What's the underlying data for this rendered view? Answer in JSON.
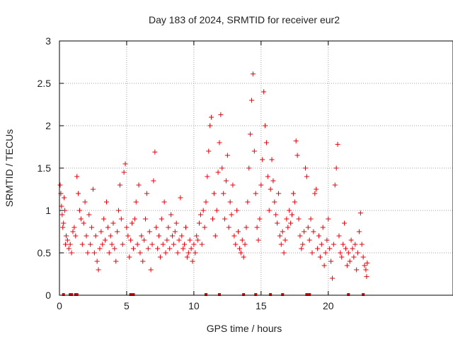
{
  "chart_data": {
    "type": "scatter",
    "title": "Day 183 of 2024, SRMTID for receiver eur2",
    "xlabel": "GPS time / hours",
    "ylabel": "SRMTID / TECUs",
    "xlim": [
      0,
      29.28
    ],
    "ylim": [
      0,
      3
    ],
    "x_ticks": [
      0,
      5,
      10,
      15,
      20
    ],
    "y_ticks": [
      0,
      0.5,
      1,
      1.5,
      2,
      2.5,
      3
    ],
    "y_tick_labels": [
      "0",
      "0.5",
      "1",
      "1.5",
      "2",
      "2.5",
      "3"
    ],
    "grid": true,
    "marker": "+",
    "color": "#e8000b",
    "series": [
      {
        "name": "eur2",
        "points": [
          [
            0.05,
            1.3
          ],
          [
            0.1,
            1.2
          ],
          [
            0.15,
            1.05
          ],
          [
            0.2,
            0.95
          ],
          [
            0.25,
            0.8
          ],
          [
            0.3,
            0.85
          ],
          [
            0.35,
            1.15
          ],
          [
            0.4,
            1.0
          ],
          [
            0.45,
            0.6
          ],
          [
            0.5,
            0.7
          ],
          [
            0.6,
            0.65
          ],
          [
            0.7,
            0.55
          ],
          [
            0.8,
            0.6
          ],
          [
            0.9,
            0.5
          ],
          [
            1.0,
            0.75
          ],
          [
            1.1,
            0.8
          ],
          [
            1.2,
            0.7
          ],
          [
            1.3,
            1.4
          ],
          [
            1.4,
            1.2
          ],
          [
            1.5,
            1.0
          ],
          [
            1.6,
            0.9
          ],
          [
            1.7,
            0.6
          ],
          [
            1.8,
            0.85
          ],
          [
            1.9,
            1.1
          ],
          [
            2.0,
            0.7
          ],
          [
            2.1,
            0.5
          ],
          [
            2.2,
            0.95
          ],
          [
            2.3,
            0.6
          ],
          [
            2.4,
            0.8
          ],
          [
            2.5,
            1.25
          ],
          [
            2.6,
            0.5
          ],
          [
            2.7,
            0.7
          ],
          [
            2.8,
            0.4
          ],
          [
            2.9,
            0.3
          ],
          [
            3.0,
            0.55
          ],
          [
            3.1,
            0.75
          ],
          [
            3.2,
            0.6
          ],
          [
            3.3,
            0.9
          ],
          [
            3.4,
            0.65
          ],
          [
            3.5,
            1.1
          ],
          [
            3.6,
            0.8
          ],
          [
            3.7,
            0.5
          ],
          [
            3.8,
            0.7
          ],
          [
            3.9,
            0.6
          ],
          [
            4.0,
            0.85
          ],
          [
            4.1,
            0.55
          ],
          [
            4.2,
            0.4
          ],
          [
            4.3,
            0.75
          ],
          [
            4.4,
            1.0
          ],
          [
            4.5,
            1.3
          ],
          [
            4.6,
            0.9
          ],
          [
            4.7,
            0.6
          ],
          [
            4.8,
            1.45
          ],
          [
            4.9,
            1.55
          ],
          [
            5.0,
            0.8
          ],
          [
            5.1,
            0.7
          ],
          [
            5.2,
            0.45
          ],
          [
            5.3,
            0.65
          ],
          [
            5.4,
            0.85
          ],
          [
            5.5,
            0.55
          ],
          [
            5.6,
            0.9
          ],
          [
            5.7,
            1.1
          ],
          [
            5.8,
            0.6
          ],
          [
            5.9,
            1.3
          ],
          [
            6.0,
            0.5
          ],
          [
            6.1,
            0.7
          ],
          [
            6.2,
            0.4
          ],
          [
            6.3,
            0.65
          ],
          [
            6.4,
            0.9
          ],
          [
            6.5,
            1.2
          ],
          [
            6.6,
            0.55
          ],
          [
            6.7,
            0.75
          ],
          [
            6.8,
            0.3
          ],
          [
            6.9,
            0.6
          ],
          [
            7.0,
            1.35
          ],
          [
            7.1,
            1.69
          ],
          [
            7.2,
            0.8
          ],
          [
            7.3,
            0.55
          ],
          [
            7.4,
            0.7
          ],
          [
            7.5,
            0.45
          ],
          [
            7.6,
            0.9
          ],
          [
            7.7,
            0.6
          ],
          [
            7.8,
            1.1
          ],
          [
            7.9,
            0.5
          ],
          [
            8.0,
            0.65
          ],
          [
            8.1,
            0.8
          ],
          [
            8.2,
            0.55
          ],
          [
            8.3,
            0.95
          ],
          [
            8.4,
            0.7
          ],
          [
            8.5,
            0.6
          ],
          [
            8.6,
            0.75
          ],
          [
            8.7,
            0.85
          ],
          [
            8.8,
            0.5
          ],
          [
            8.9,
            0.65
          ],
          [
            9.0,
            1.15
          ],
          [
            9.1,
            0.7
          ],
          [
            9.2,
            0.55
          ],
          [
            9.3,
            0.6
          ],
          [
            9.4,
            0.8
          ],
          [
            9.5,
            0.45
          ],
          [
            9.6,
            0.5
          ],
          [
            9.7,
            0.65
          ],
          [
            9.8,
            0.55
          ],
          [
            9.9,
            0.4
          ],
          [
            10.0,
            0.6
          ],
          [
            10.1,
            0.5
          ],
          [
            10.2,
            0.7
          ],
          [
            10.3,
            0.65
          ],
          [
            10.4,
            0.85
          ],
          [
            10.5,
            0.95
          ],
          [
            10.6,
            0.6
          ],
          [
            10.7,
            1.0
          ],
          [
            10.8,
            0.8
          ],
          [
            10.9,
            1.1
          ],
          [
            11.0,
            1.4
          ],
          [
            11.1,
            1.7
          ],
          [
            11.2,
            2.0
          ],
          [
            11.3,
            2.1
          ],
          [
            11.4,
            0.9
          ],
          [
            11.5,
            1.2
          ],
          [
            11.6,
            0.7
          ],
          [
            11.7,
            1.0
          ],
          [
            11.8,
            1.45
          ],
          [
            11.9,
            1.8
          ],
          [
            12.0,
            2.13
          ],
          [
            12.1,
            1.5
          ],
          [
            12.2,
            1.2
          ],
          [
            12.3,
            0.9
          ],
          [
            12.4,
            1.35
          ],
          [
            12.5,
            1.65
          ],
          [
            12.6,
            0.8
          ],
          [
            12.7,
            1.1
          ],
          [
            12.8,
            0.95
          ],
          [
            12.9,
            1.3
          ],
          [
            13.0,
            0.7
          ],
          [
            13.1,
            0.6
          ],
          [
            13.2,
            1.0
          ],
          [
            13.3,
            0.75
          ],
          [
            13.4,
            0.55
          ],
          [
            13.5,
            0.5
          ],
          [
            13.6,
            0.65
          ],
          [
            13.7,
            0.45
          ],
          [
            13.8,
            0.6
          ],
          [
            13.9,
            0.8
          ],
          [
            14.0,
            1.1
          ],
          [
            14.1,
            1.5
          ],
          [
            14.2,
            1.9
          ],
          [
            14.3,
            2.3
          ],
          [
            14.4,
            2.61
          ],
          [
            14.5,
            1.7
          ],
          [
            14.6,
            1.2
          ],
          [
            14.7,
            0.8
          ],
          [
            14.8,
            0.65
          ],
          [
            14.9,
            0.9
          ],
          [
            15.0,
            1.3
          ],
          [
            15.1,
            1.6
          ],
          [
            15.2,
            2.4
          ],
          [
            15.3,
            2.0
          ],
          [
            15.4,
            1.8
          ],
          [
            15.5,
            1.4
          ],
          [
            15.6,
            1.0
          ],
          [
            15.7,
            1.25
          ],
          [
            15.8,
            1.6
          ],
          [
            15.9,
            1.35
          ],
          [
            16.0,
            1.1
          ],
          [
            16.1,
            0.95
          ],
          [
            16.2,
            0.85
          ],
          [
            16.3,
            1.2
          ],
          [
            16.4,
            0.7
          ],
          [
            16.5,
            0.6
          ],
          [
            16.6,
            0.75
          ],
          [
            16.7,
            0.5
          ],
          [
            16.8,
            0.65
          ],
          [
            16.9,
            0.9
          ],
          [
            17.0,
            0.8
          ],
          [
            17.1,
            1.0
          ],
          [
            17.2,
            0.85
          ],
          [
            17.3,
            0.95
          ],
          [
            17.4,
            1.2
          ],
          [
            17.5,
            1.1
          ],
          [
            17.6,
            1.82
          ],
          [
            17.7,
            1.65
          ],
          [
            17.8,
            0.9
          ],
          [
            17.9,
            0.7
          ],
          [
            18.0,
            0.55
          ],
          [
            18.1,
            0.6
          ],
          [
            18.2,
            0.75
          ],
          [
            18.3,
            1.5
          ],
          [
            18.4,
            1.4
          ],
          [
            18.5,
            0.8
          ],
          [
            18.6,
            0.65
          ],
          [
            18.7,
            0.9
          ],
          [
            18.8,
            0.5
          ],
          [
            18.9,
            0.75
          ],
          [
            19.0,
            1.2
          ],
          [
            19.1,
            1.25
          ],
          [
            19.2,
            0.55
          ],
          [
            19.3,
            0.7
          ],
          [
            19.4,
            0.45
          ],
          [
            19.5,
            0.6
          ],
          [
            19.6,
            0.8
          ],
          [
            19.7,
            0.35
          ],
          [
            19.8,
            0.5
          ],
          [
            19.9,
            0.65
          ],
          [
            20.0,
            0.9
          ],
          [
            20.1,
            0.55
          ],
          [
            20.2,
            0.4
          ],
          [
            20.3,
            0.2
          ],
          [
            20.4,
            0.6
          ],
          [
            20.5,
            1.3
          ],
          [
            20.6,
            1.5
          ],
          [
            20.7,
            1.78
          ],
          [
            20.8,
            0.7
          ],
          [
            20.9,
            0.5
          ],
          [
            21.0,
            0.45
          ],
          [
            21.1,
            0.6
          ],
          [
            21.2,
            0.85
          ],
          [
            21.3,
            0.55
          ],
          [
            21.4,
            0.35
          ],
          [
            21.5,
            0.5
          ],
          [
            21.6,
            0.4
          ],
          [
            21.7,
            0.65
          ],
          [
            21.8,
            0.55
          ],
          [
            21.9,
            0.45
          ],
          [
            22.0,
            0.6
          ],
          [
            22.1,
            0.3
          ],
          [
            22.2,
            0.5
          ],
          [
            22.3,
            0.75
          ],
          [
            22.4,
            0.97
          ],
          [
            22.5,
            0.6
          ],
          [
            22.6,
            0.45
          ],
          [
            22.7,
            0.35
          ],
          [
            22.8,
            0.3
          ],
          [
            22.85,
            0.22
          ],
          [
            22.9,
            0.38
          ]
        ]
      }
    ],
    "baseline_markers_x": [
      0.3,
      0.8,
      0.9,
      1.2,
      1.3,
      5.3,
      5.4,
      5.5,
      10.9,
      11.9,
      13.7,
      14.6,
      15.7,
      16.6,
      18.4,
      18.6,
      21.5,
      22.6
    ]
  }
}
